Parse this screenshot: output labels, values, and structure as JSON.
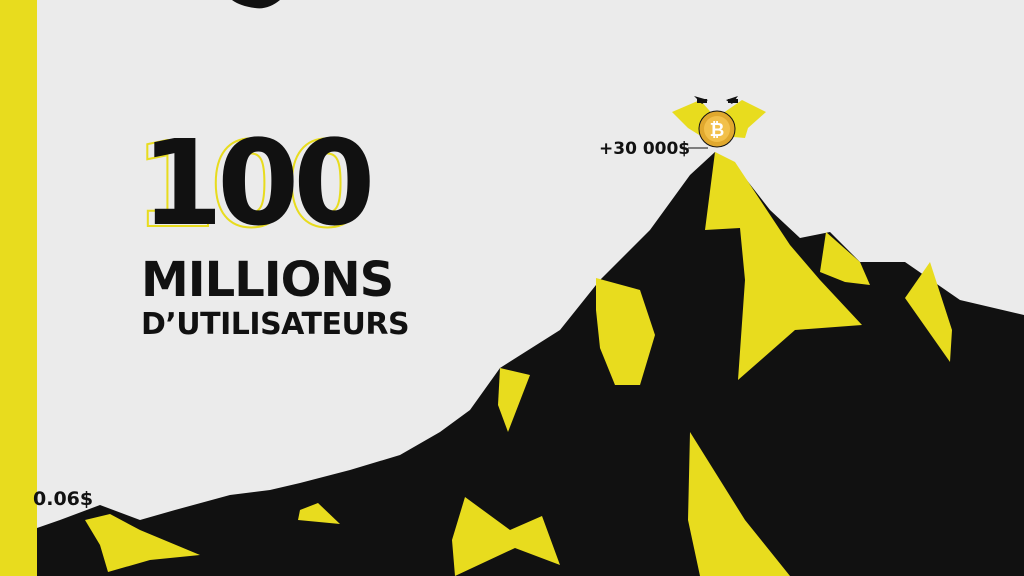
{
  "headline": {
    "number": "100",
    "line1": "MILLIONS",
    "line2": "D’UTILISATEURS"
  },
  "prices": {
    "peak": "+30 000$",
    "start": "0.06$"
  },
  "icons": {
    "coin": "bitcoin-coin-icon",
    "trophy": "winged-banner-icon"
  },
  "colors": {
    "background": "#ebebeb",
    "accent": "#e8dc1e",
    "ink": "#111111"
  }
}
